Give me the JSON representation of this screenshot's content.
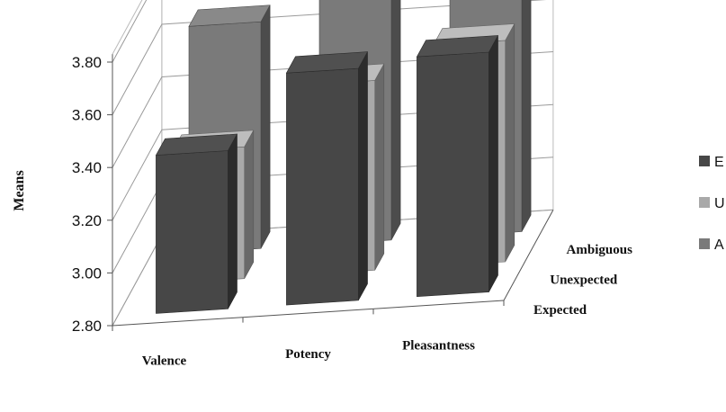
{
  "chart_data": {
    "type": "bar",
    "subtype": "3d-clustered-column",
    "categories": [
      "Valence",
      "Potency",
      "Pleasantness"
    ],
    "series": [
      {
        "name": "E",
        "depth_label": "Expected",
        "color": "#474747",
        "values": [
          3.4,
          3.68,
          3.71
        ]
      },
      {
        "name": "U",
        "depth_label": "Unexpected",
        "color": "#a9a9a9",
        "values": [
          3.3,
          3.52,
          3.64
        ]
      },
      {
        "name": "A",
        "depth_label": "Ambiguous",
        "color": "#7a7a7a",
        "values": [
          3.66,
          3.73,
          3.8
        ]
      }
    ],
    "ylabel": "Means",
    "ylim": [
      2.8,
      3.8
    ],
    "yticks": [
      "3.80",
      "3.60",
      "3.40",
      "3.20",
      "3.00",
      "2.80"
    ],
    "grid": true,
    "legend_placement": "right"
  }
}
